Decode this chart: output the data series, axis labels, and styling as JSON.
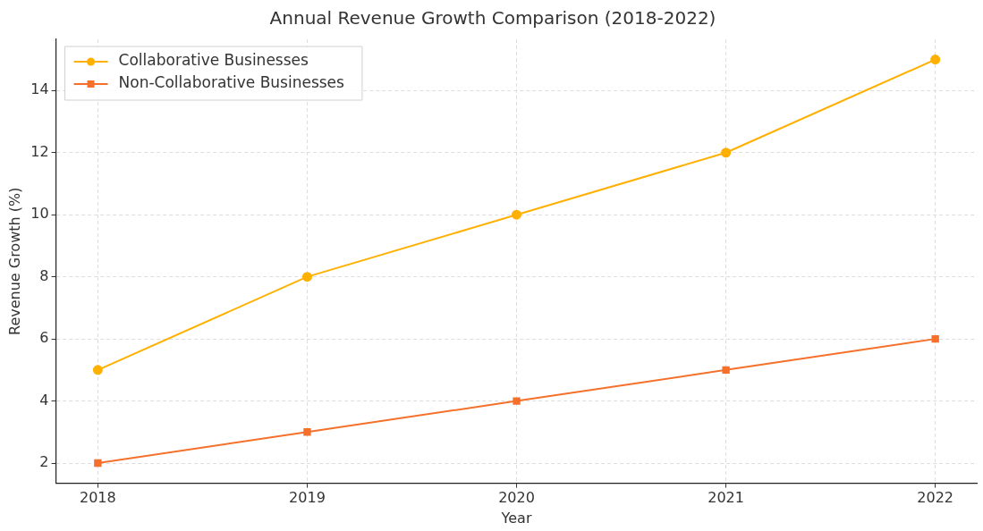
{
  "chart_data": {
    "type": "line",
    "title": "Annual Revenue Growth Comparison (2018-2022)",
    "xlabel": "Year",
    "ylabel": "Revenue Growth (%)",
    "x": [
      2018,
      2019,
      2020,
      2021,
      2022
    ],
    "series": [
      {
        "name": "Collaborative Businesses",
        "color": "#ffb000",
        "marker": "circle",
        "values": [
          5,
          8,
          10,
          12,
          15
        ]
      },
      {
        "name": "Non-Collaborative Businesses",
        "color": "#f5712b",
        "marker": "square",
        "values": [
          2,
          3,
          4,
          5,
          6
        ]
      }
    ],
    "xlim": [
      2017.8,
      2022.2
    ],
    "xticks": [
      2018,
      2019,
      2020,
      2021,
      2022
    ],
    "ylim": [
      1.35,
      15.65
    ],
    "yticks": [
      2,
      4,
      6,
      8,
      10,
      12,
      14
    ],
    "grid": true,
    "legend": "top left",
    "line_style": "solid"
  }
}
